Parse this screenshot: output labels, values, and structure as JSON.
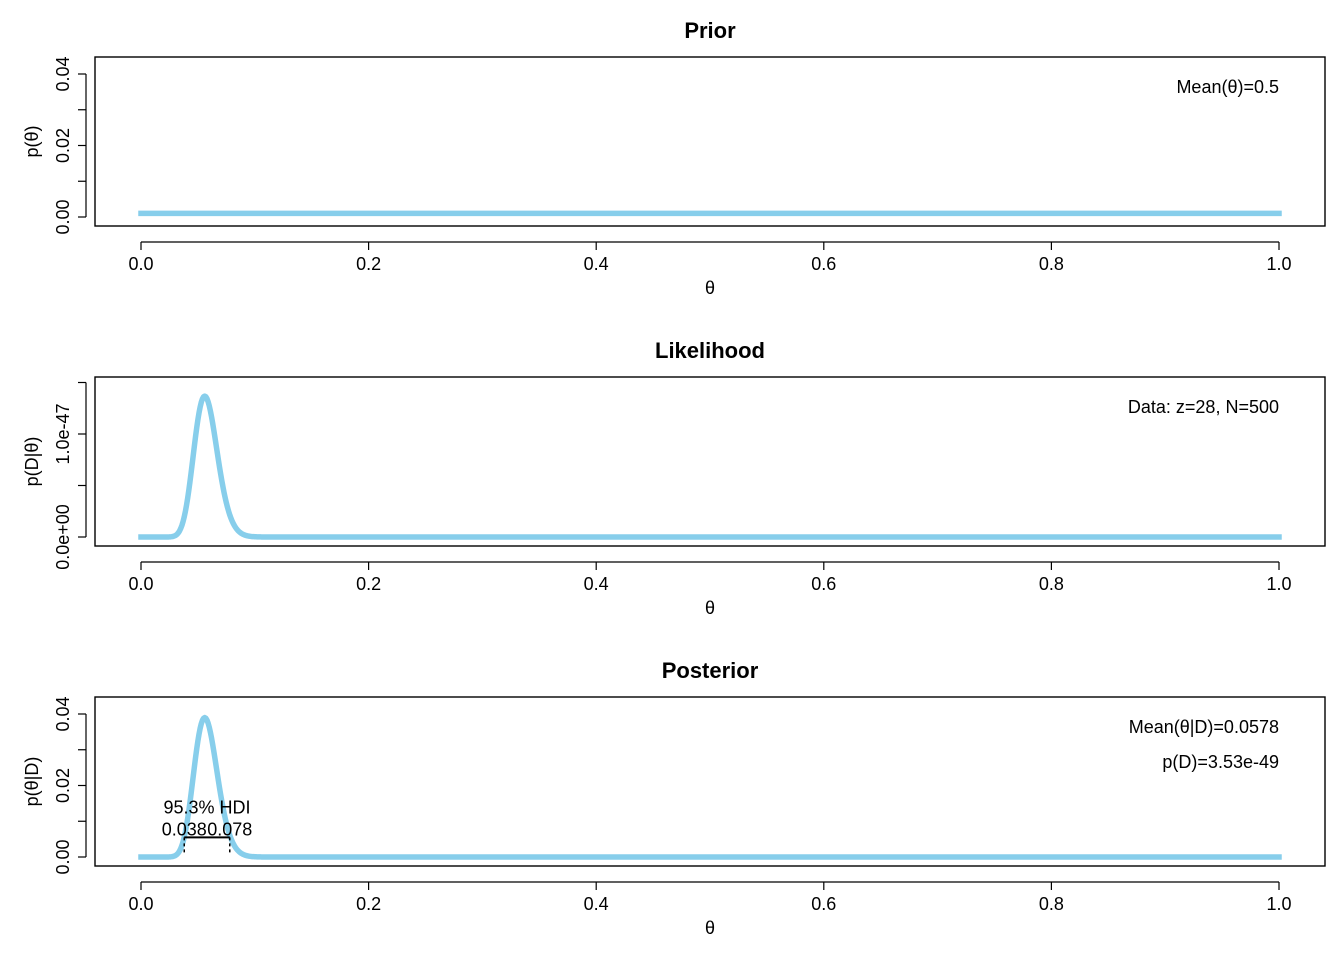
{
  "chart_data": [
    {
      "type": "line",
      "title": "Prior",
      "xlabel": "θ",
      "ylabel": "p(θ)",
      "xlim": [
        0,
        1
      ],
      "ylim": [
        0,
        0.04
      ],
      "x_ticks": [
        "0.0",
        "0.2",
        "0.4",
        "0.6",
        "0.8",
        "1.0"
      ],
      "y_ticks": [
        "0.00",
        "0.02",
        "0.04"
      ],
      "y_tick_values": [
        0,
        0.02,
        0.04
      ],
      "annotations": [
        "Mean(θ)=0.5"
      ],
      "curve": {
        "shape": "uniform",
        "value": 0.001
      },
      "line_color": "#87CEEB",
      "grid": false
    },
    {
      "type": "line",
      "title": "Likelihood",
      "xlabel": "θ",
      "ylabel": "p(D|θ)",
      "xlim": [
        0,
        1
      ],
      "ylim": [
        0,
        1.5e-47
      ],
      "x_ticks": [
        "0.0",
        "0.2",
        "0.4",
        "0.6",
        "0.8",
        "1.0"
      ],
      "y_ticks": [
        "0.0e+00",
        "1.0e-47"
      ],
      "y_tick_values": [
        0,
        1e-47
      ],
      "y_minor_ticks": [
        5e-48,
        1.5e-47
      ],
      "annotations": [
        "Data: z=28, N=500"
      ],
      "curve": {
        "shape": "bernoulli-likelihood",
        "z": 28,
        "N": 500
      },
      "line_color": "#87CEEB",
      "grid": false
    },
    {
      "type": "line",
      "title": "Posterior",
      "xlabel": "θ",
      "ylabel": "p(θ|D)",
      "xlim": [
        0,
        1
      ],
      "ylim": [
        0,
        0.04
      ],
      "x_ticks": [
        "0.0",
        "0.2",
        "0.4",
        "0.6",
        "0.8",
        "1.0"
      ],
      "y_ticks": [
        "0.00",
        "0.02",
        "0.04"
      ],
      "y_tick_values": [
        0,
        0.02,
        0.04
      ],
      "annotations": [
        "Mean(θ|D)=0.0578",
        "p(D)=3.53e-49"
      ],
      "hdi": {
        "label": "95.3% HDI",
        "low": 0.038,
        "high": 0.078,
        "low_label": "0.038",
        "high_label": "0.078",
        "height": 0.0055
      },
      "curve": {
        "shape": "bernoulli-posterior",
        "z": 28,
        "N": 500,
        "peak": 0.039
      },
      "line_color": "#87CEEB",
      "grid": false
    }
  ]
}
